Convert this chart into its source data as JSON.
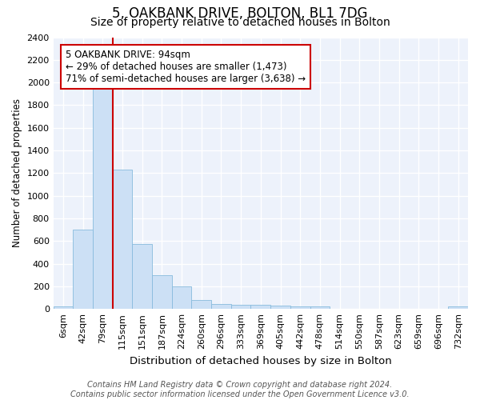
{
  "title": "5, OAKBANK DRIVE, BOLTON, BL1 7DG",
  "subtitle": "Size of property relative to detached houses in Bolton",
  "xlabel": "Distribution of detached houses by size in Bolton",
  "ylabel": "Number of detached properties",
  "categories": [
    "6sqm",
    "42sqm",
    "79sqm",
    "115sqm",
    "151sqm",
    "187sqm",
    "224sqm",
    "260sqm",
    "296sqm",
    "333sqm",
    "369sqm",
    "405sqm",
    "442sqm",
    "478sqm",
    "514sqm",
    "550sqm",
    "587sqm",
    "623sqm",
    "659sqm",
    "696sqm",
    "732sqm"
  ],
  "values": [
    20,
    700,
    1950,
    1230,
    575,
    300,
    200,
    80,
    45,
    35,
    35,
    30,
    20,
    20,
    0,
    0,
    0,
    0,
    0,
    0,
    20
  ],
  "bar_color": "#cce0f5",
  "bar_edge_color": "#88bbdd",
  "background_color": "#edf2fb",
  "grid_color": "#ffffff",
  "vline_x": 3.0,
  "vline_color": "#cc0000",
  "annotation_text": "5 OAKBANK DRIVE: 94sqm\n← 29% of detached houses are smaller (1,473)\n71% of semi-detached houses are larger (3,638) →",
  "annotation_box_color": "#ffffff",
  "annotation_box_edge": "#cc0000",
  "ylim": [
    0,
    2400
  ],
  "yticks": [
    0,
    200,
    400,
    600,
    800,
    1000,
    1200,
    1400,
    1600,
    1800,
    2000,
    2200,
    2400
  ],
  "footnote": "Contains HM Land Registry data © Crown copyright and database right 2024.\nContains public sector information licensed under the Open Government Licence v3.0.",
  "title_fontsize": 12,
  "subtitle_fontsize": 10,
  "xlabel_fontsize": 9.5,
  "ylabel_fontsize": 8.5,
  "tick_fontsize": 8,
  "annotation_fontsize": 8.5,
  "footnote_fontsize": 7
}
